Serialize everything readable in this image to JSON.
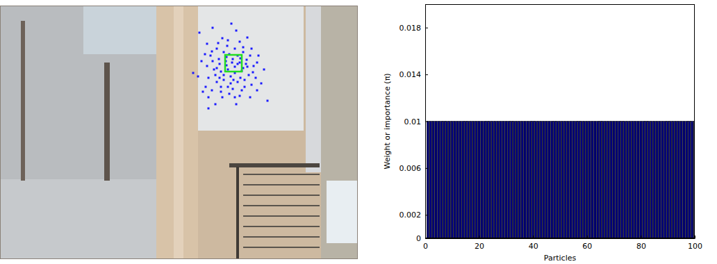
{
  "chart_data": [
    {
      "type": "scatter",
      "tick_labels": false,
      "xlim": [
        0,
        515
      ],
      "ylim": [
        0,
        365
      ],
      "series": [
        {
          "color": "#1a1aff",
          "marker": "dot",
          "x": [
            287,
            306,
            333,
            340,
            320,
            298,
            312,
            327,
            345,
            356,
            362,
            350,
            303,
            315,
            325,
            335,
            345,
            355,
            365,
            372,
            298,
            308,
            318,
            328,
            338,
            348,
            358,
            368,
            300,
            312,
            322,
            332,
            342,
            352,
            362,
            305,
            318,
            330,
            345,
            360,
            296,
            285,
            290,
            278,
            310,
            340,
            300,
            385,
            380,
            376,
            322,
            330,
            342,
            316,
            326,
            338,
            350,
            310,
            332,
            346,
            356,
            364,
            320,
            335,
            300,
            292,
            350,
            338,
            328,
            314,
            305,
            295,
            360,
            370,
            318,
            328,
            338,
            348,
            370,
            312,
            322,
            342,
            352,
            334,
            306,
            346,
            326,
            336,
            316,
            354
          ],
          "y": [
            326,
            333,
            339,
            329,
            318,
            310,
            303,
            307,
            313,
            319,
            303,
            298,
            293,
            288,
            285,
            288,
            283,
            287,
            278,
            293,
            278,
            273,
            270,
            273,
            268,
            271,
            265,
            261,
            261,
            255,
            258,
            253,
            255,
            248,
            251,
            243,
            241,
            238,
            235,
            233,
            248,
            263,
            285,
            268,
            223,
            223,
            217,
            228,
            273,
            253,
            298,
            295,
            293,
            281,
            279,
            277,
            275,
            265,
            263,
            261,
            277,
            269,
            233,
            245,
            233,
            241,
            305,
            303,
            315,
            311,
            299,
            295,
            293,
            283,
            248,
            248,
            233,
            243,
            243,
            275,
            265,
            281,
            258,
            283,
            285,
            289,
            291,
            258,
            261,
            281
          ]
        },
        {
          "color": "#22dd22",
          "marker": "square",
          "x": [
            336
          ],
          "y": [
            282
          ]
        }
      ]
    },
    {
      "type": "bar",
      "color": "#00007f",
      "xlabel": "Particles",
      "ylabel": "Weight or importance (π)",
      "xlim": [
        0,
        100
      ],
      "ylim": [
        0,
        0.02
      ],
      "xticks": [
        0,
        20,
        40,
        60,
        80,
        100
      ],
      "yticks": [
        0,
        0.002,
        0.006,
        0.01,
        0.014,
        0.018
      ],
      "x": [
        1,
        2,
        3,
        4,
        5,
        6,
        7,
        8,
        9,
        10,
        11,
        12,
        13,
        14,
        15,
        16,
        17,
        18,
        19,
        20,
        21,
        22,
        23,
        24,
        25,
        26,
        27,
        28,
        29,
        30,
        31,
        32,
        33,
        34,
        35,
        36,
        37,
        38,
        39,
        40,
        41,
        42,
        43,
        44,
        45,
        46,
        47,
        48,
        49,
        50,
        51,
        52,
        53,
        54,
        55,
        56,
        57,
        58,
        59,
        60,
        61,
        62,
        63,
        64,
        65,
        66,
        67,
        68,
        69,
        70,
        71,
        72,
        73,
        74,
        75,
        76,
        77,
        78,
        79,
        80,
        81,
        82,
        83,
        84,
        85,
        86,
        87,
        88,
        89,
        90,
        91,
        92,
        93,
        94,
        95,
        96,
        97,
        98,
        99,
        100
      ],
      "values": [
        0.01,
        0.01,
        0.01,
        0.01,
        0.01,
        0.01,
        0.01,
        0.01,
        0.01,
        0.01,
        0.01,
        0.01,
        0.01,
        0.01,
        0.01,
        0.01,
        0.01,
        0.01,
        0.01,
        0.01,
        0.01,
        0.01,
        0.01,
        0.01,
        0.01,
        0.01,
        0.01,
        0.01,
        0.01,
        0.01,
        0.01,
        0.01,
        0.01,
        0.01,
        0.01,
        0.01,
        0.01,
        0.01,
        0.01,
        0.01,
        0.01,
        0.01,
        0.01,
        0.01,
        0.01,
        0.01,
        0.01,
        0.01,
        0.01,
        0.01,
        0.01,
        0.01,
        0.01,
        0.01,
        0.01,
        0.01,
        0.01,
        0.01,
        0.01,
        0.01,
        0.01,
        0.01,
        0.01,
        0.01,
        0.01,
        0.01,
        0.01,
        0.01,
        0.01,
        0.01,
        0.01,
        0.01,
        0.01,
        0.01,
        0.01,
        0.01,
        0.01,
        0.01,
        0.01,
        0.01,
        0.01,
        0.01,
        0.01,
        0.01,
        0.01,
        0.01,
        0.01,
        0.01,
        0.01,
        0.01,
        0.01,
        0.01,
        0.01,
        0.01,
        0.01,
        0.01,
        0.01,
        0.01,
        0.01,
        0.01
      ]
    }
  ]
}
